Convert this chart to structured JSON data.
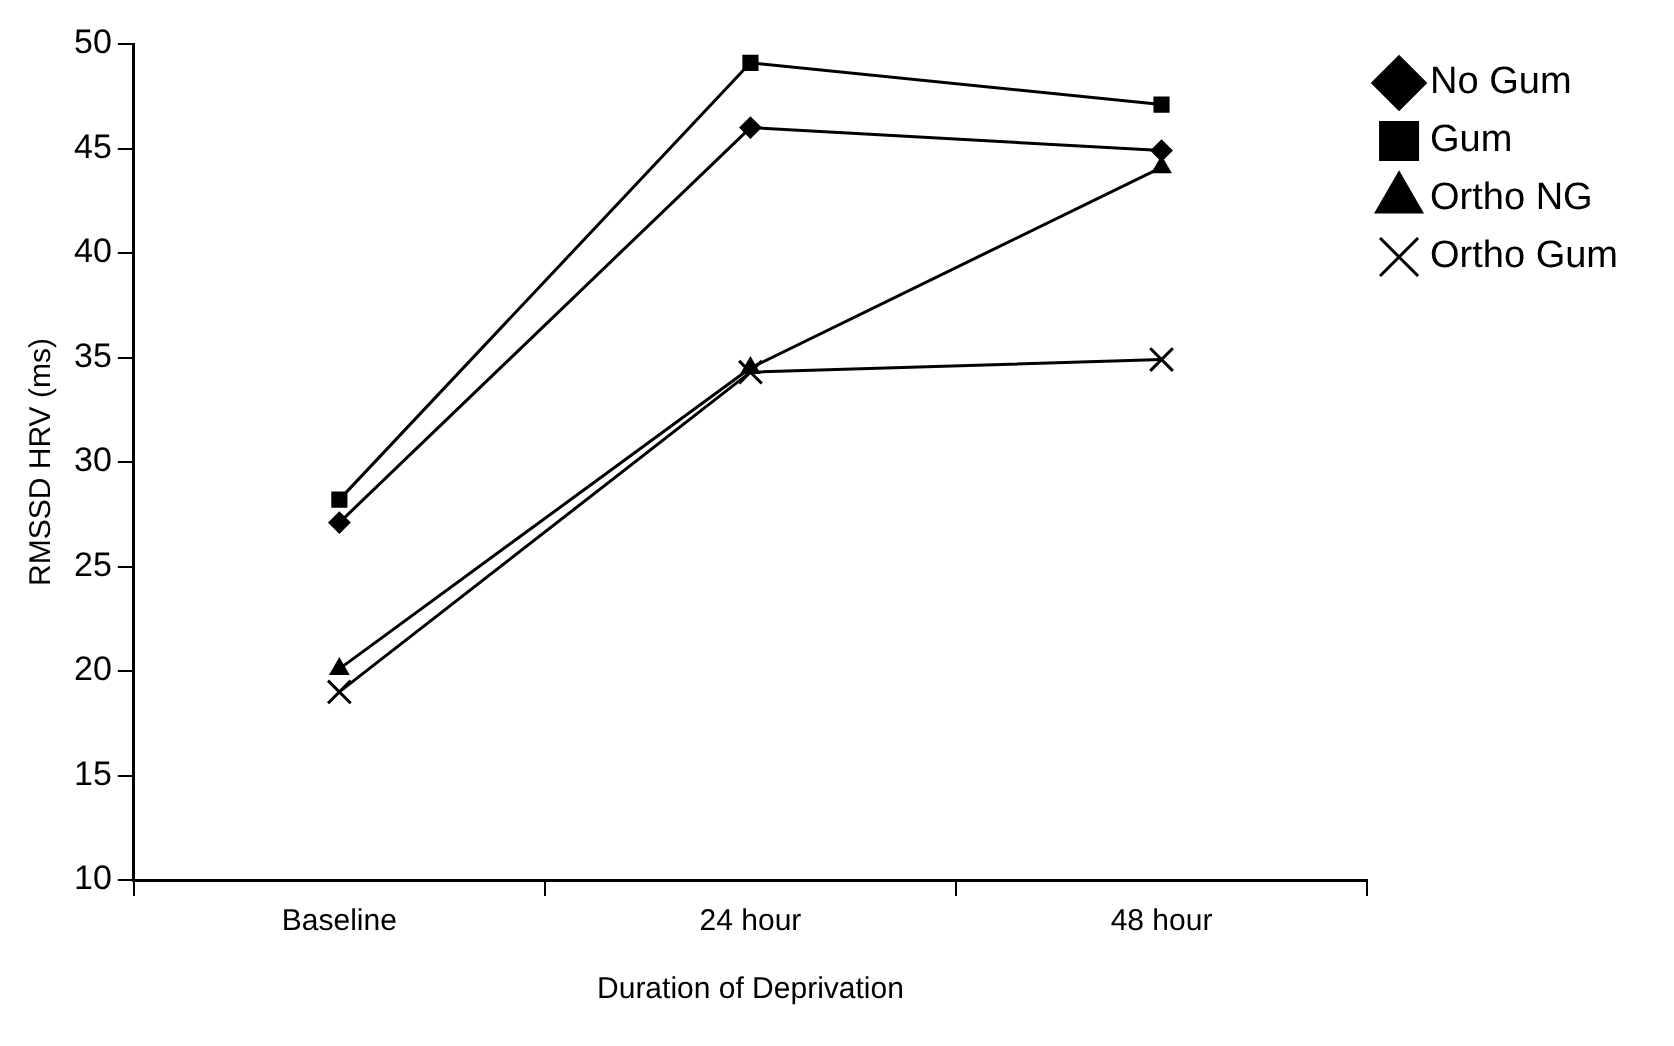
{
  "chart_data": {
    "type": "line",
    "xlabel": "Duration of Deprivation",
    "ylabel": "RMSSD HRV (ms)",
    "categories": [
      "Baseline",
      "24 hour",
      "48 hour"
    ],
    "series": [
      {
        "name": "No Gum",
        "color": "#000000",
        "marker": "diamond",
        "values": [
          27.1,
          46.0,
          44.9
        ]
      },
      {
        "name": "Gum",
        "color": "#000000",
        "marker": "square",
        "values": [
          28.2,
          49.1,
          47.1
        ]
      },
      {
        "name": "Ortho NG",
        "color": "#000000",
        "marker": "triangle",
        "values": [
          20.1,
          34.5,
          44.1
        ]
      },
      {
        "name": "Ortho Gum",
        "color": "#000000",
        "marker": "cross",
        "values": [
          19.0,
          34.3,
          34.9
        ]
      }
    ],
    "ylim": [
      10,
      50
    ],
    "yticks": [
      10,
      15,
      20,
      25,
      30,
      35,
      40,
      45,
      50
    ],
    "grid": false,
    "legend": "top right"
  }
}
